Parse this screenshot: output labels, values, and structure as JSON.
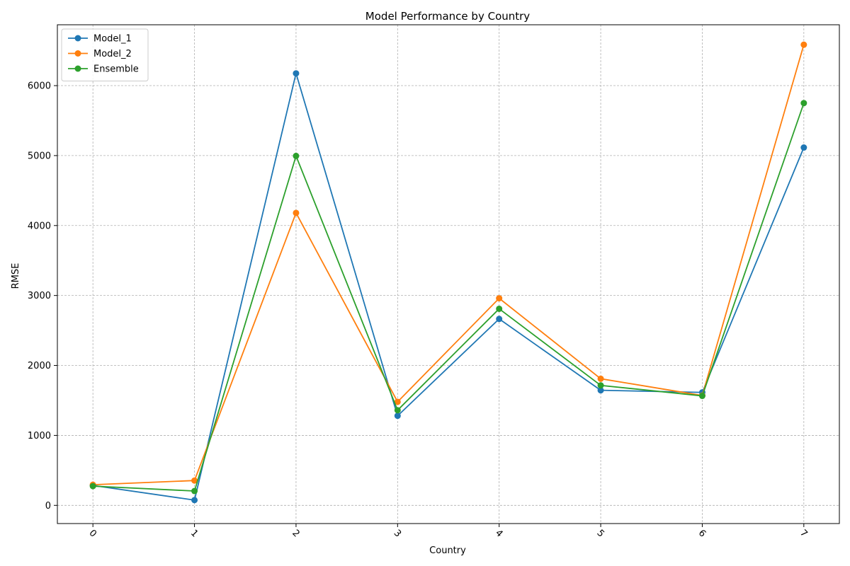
{
  "chart_data": {
    "type": "line",
    "title": "Model Performance by Country",
    "xlabel": "Country",
    "ylabel": "RMSE",
    "categories": [
      "0",
      "1",
      "2",
      "3",
      "4",
      "5",
      "6",
      "7"
    ],
    "x": [
      0,
      1,
      2,
      3,
      4,
      5,
      6,
      7
    ],
    "xlim": [
      -0.35,
      7.35
    ],
    "ylim": [
      -260,
      6870
    ],
    "yticks": [
      0,
      1000,
      2000,
      3000,
      4000,
      5000,
      6000
    ],
    "xtick_rotation": 45,
    "grid": true,
    "legend_position": "top-left",
    "markers": "circle",
    "series": [
      {
        "name": "Model_1",
        "color": "#1f77b4",
        "values": [
          285,
          75,
          6175,
          1280,
          2665,
          1645,
          1615,
          5115
        ]
      },
      {
        "name": "Model_2",
        "color": "#ff7f0e",
        "values": [
          295,
          355,
          4180,
          1480,
          2960,
          1810,
          1570,
          6585
        ]
      },
      {
        "name": "Ensemble",
        "color": "#2ca02c",
        "values": [
          275,
          205,
          4995,
          1360,
          2810,
          1715,
          1565,
          5750
        ]
      }
    ]
  }
}
